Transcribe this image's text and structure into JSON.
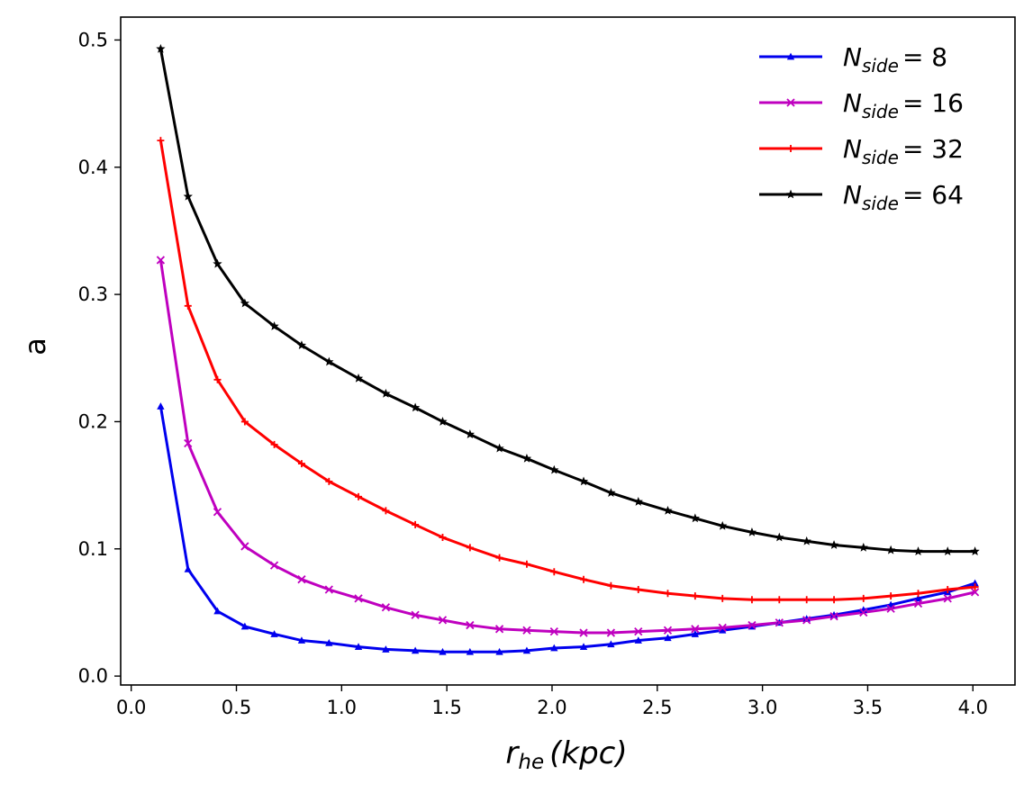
{
  "chart_data": {
    "type": "line",
    "title": "",
    "xlabel": {
      "main": "r",
      "sub": "he",
      "rest": "(kpc)"
    },
    "ylabel": "a",
    "xlim": [
      -0.05,
      4.2
    ],
    "ylim": [
      -0.007,
      0.518
    ],
    "xticks": [
      0.0,
      0.5,
      1.0,
      1.5,
      2.0,
      2.5,
      3.0,
      3.5,
      4.0
    ],
    "xtick_labels": [
      "0.0",
      "0.5",
      "1.0",
      "1.5",
      "2.0",
      "2.5",
      "3.0",
      "3.5",
      "4.0"
    ],
    "yticks": [
      0.0,
      0.1,
      0.2,
      0.3,
      0.4,
      0.5
    ],
    "ytick_labels": [
      "0.0",
      "0.1",
      "0.2",
      "0.3",
      "0.4",
      "0.5"
    ],
    "legend_position": "top-right",
    "x": [
      0.14,
      0.27,
      0.41,
      0.54,
      0.68,
      0.81,
      0.94,
      1.08,
      1.21,
      1.35,
      1.48,
      1.61,
      1.75,
      1.88,
      2.01,
      2.15,
      2.28,
      2.41,
      2.55,
      2.68,
      2.81,
      2.95,
      3.08,
      3.21,
      3.34,
      3.48,
      3.61,
      3.74,
      3.88,
      4.01
    ],
    "series": [
      {
        "name": "N_side = 8",
        "label_main": "N",
        "label_sub": "side",
        "label_value": "= 8",
        "color": "#0000ee",
        "marker": "tri",
        "values": [
          0.212,
          0.084,
          0.051,
          0.039,
          0.033,
          0.028,
          0.026,
          0.023,
          0.021,
          0.02,
          0.019,
          0.019,
          0.019,
          0.02,
          0.022,
          0.023,
          0.025,
          0.028,
          0.03,
          0.033,
          0.036,
          0.039,
          0.042,
          0.045,
          0.048,
          0.052,
          0.056,
          0.061,
          0.066,
          0.073
        ]
      },
      {
        "name": "N_side = 16",
        "label_main": "N",
        "label_sub": "side",
        "label_value": "= 16",
        "color": "#bf00bf",
        "marker": "x",
        "values": [
          0.327,
          0.183,
          0.129,
          0.102,
          0.087,
          0.076,
          0.068,
          0.061,
          0.054,
          0.048,
          0.044,
          0.04,
          0.037,
          0.036,
          0.035,
          0.034,
          0.034,
          0.035,
          0.036,
          0.037,
          0.038,
          0.04,
          0.042,
          0.044,
          0.047,
          0.05,
          0.053,
          0.057,
          0.061,
          0.066
        ]
      },
      {
        "name": "N_side = 32",
        "label_main": "N",
        "label_sub": "side",
        "label_value": "= 32",
        "color": "#ff0000",
        "marker": "plus",
        "values": [
          0.421,
          0.291,
          0.233,
          0.2,
          0.182,
          0.167,
          0.153,
          0.141,
          0.13,
          0.119,
          0.109,
          0.101,
          0.093,
          0.088,
          0.082,
          0.076,
          0.071,
          0.068,
          0.065,
          0.063,
          0.061,
          0.06,
          0.06,
          0.06,
          0.06,
          0.061,
          0.063,
          0.065,
          0.068,
          0.07
        ]
      },
      {
        "name": "N_side = 64",
        "label_main": "N",
        "label_sub": "side",
        "label_value": "= 64",
        "color": "#000000",
        "marker": "star",
        "values": [
          0.493,
          0.377,
          0.324,
          0.293,
          0.275,
          0.26,
          0.247,
          0.234,
          0.222,
          0.211,
          0.2,
          0.19,
          0.179,
          0.171,
          0.162,
          0.153,
          0.144,
          0.137,
          0.13,
          0.124,
          0.118,
          0.113,
          0.109,
          0.106,
          0.103,
          0.101,
          0.099,
          0.098,
          0.098,
          0.098
        ]
      }
    ]
  }
}
